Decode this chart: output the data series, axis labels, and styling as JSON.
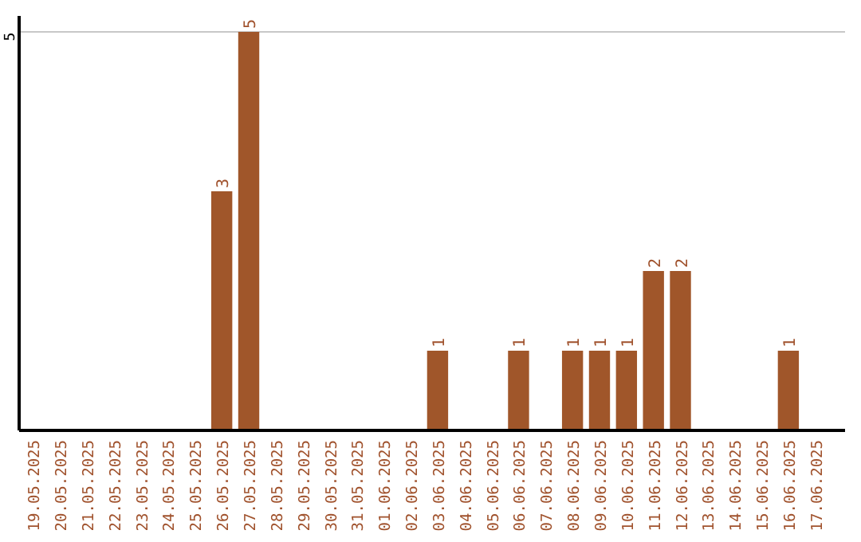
{
  "chart_data": {
    "type": "bar",
    "categories": [
      "19.05.2025",
      "20.05.2025",
      "21.05.2025",
      "22.05.2025",
      "23.05.2025",
      "24.05.2025",
      "25.05.2025",
      "26.05.2025",
      "27.05.2025",
      "28.05.2025",
      "29.05.2025",
      "30.05.2025",
      "31.05.2025",
      "01.06.2025",
      "02.06.2025",
      "03.06.2025",
      "04.06.2025",
      "05.06.2025",
      "06.06.2025",
      "07.06.2025",
      "08.06.2025",
      "09.06.2025",
      "10.06.2025",
      "11.06.2025",
      "12.06.2025",
      "13.06.2025",
      "14.06.2025",
      "15.06.2025",
      "16.06.2025",
      "17.06.2025"
    ],
    "values": [
      0,
      0,
      0,
      0,
      0,
      0,
      0,
      3,
      5,
      0,
      0,
      0,
      0,
      0,
      0,
      1,
      0,
      0,
      1,
      0,
      1,
      1,
      1,
      2,
      2,
      0,
      0,
      0,
      1,
      0
    ],
    "value_labels": [
      null,
      null,
      null,
      null,
      null,
      null,
      null,
      "3",
      "5",
      null,
      null,
      null,
      null,
      null,
      null,
      "1",
      null,
      null,
      "1",
      null,
      "1",
      "1",
      "1",
      "2",
      "2",
      null,
      null,
      null,
      "1",
      null
    ],
    "color": "#a0562a",
    "ylim": [
      0,
      5.2
    ],
    "yticks": [
      5
    ],
    "grid": "y"
  }
}
